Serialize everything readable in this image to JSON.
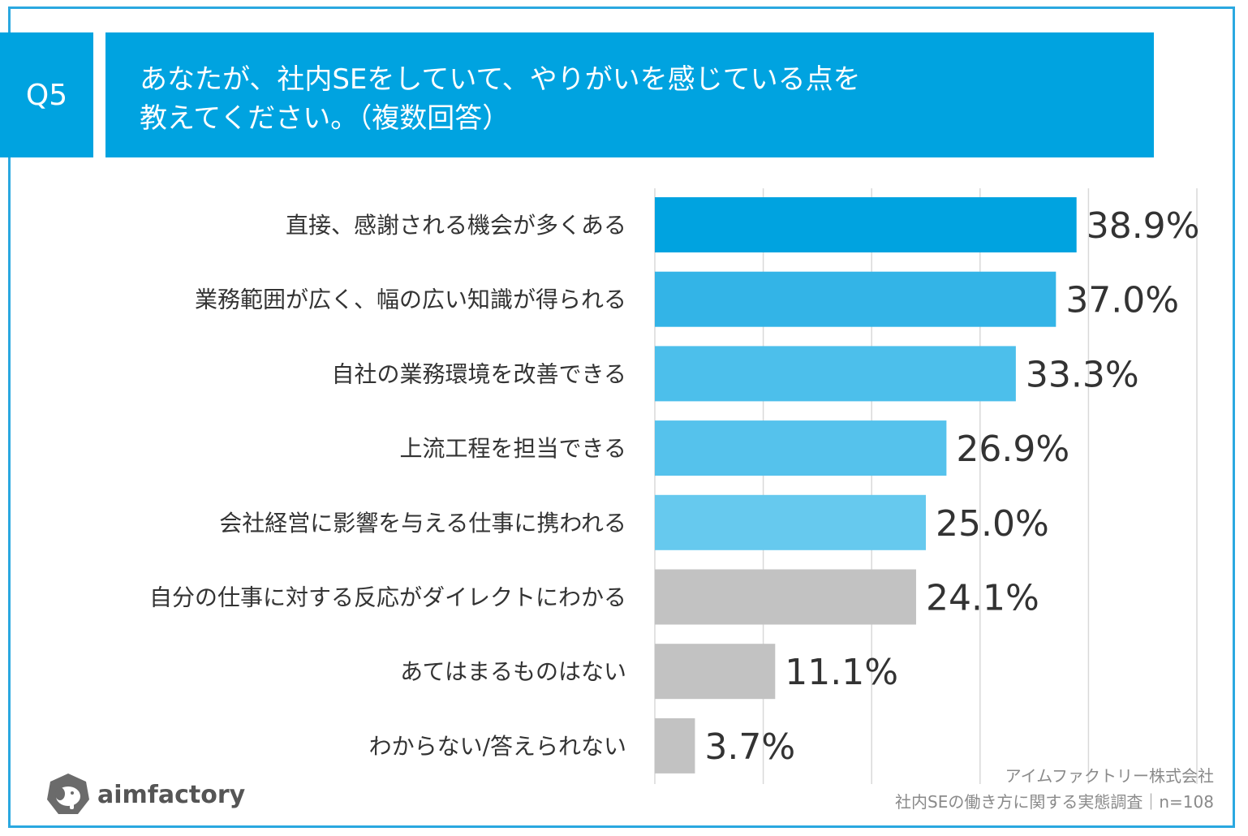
{
  "header": {
    "badge": "Q5",
    "title_line1": "あなたが、社内SEをしていて、やりがいを感じている点を",
    "title_line2": "教えてください。（複数回答）"
  },
  "footer": {
    "company": "アイムファクトリー株式会社",
    "survey": "社内SEの働き方に関する実態調査｜n=108",
    "logo_text": "aimfactory"
  },
  "colors": {
    "header": "#00a3e0",
    "border": "#2aa8e0",
    "gray_bar": "#c2c2c2"
  },
  "chart_data": {
    "type": "bar",
    "orientation": "horizontal",
    "xlim": [
      0,
      50
    ],
    "grid": true,
    "categories": [
      "直接、感謝される機会が多くある",
      "業務範囲が広く、幅の広い知識が得られる",
      "自社の業務環境を改善できる",
      "上流工程を担当できる",
      "会社経営に影響を与える仕事に携われる",
      "自分の仕事に対する反応がダイレクトにわかる",
      "あてはまるものはない",
      "わからない/答えられない"
    ],
    "values": [
      38.9,
      37.0,
      33.3,
      26.9,
      25.0,
      24.1,
      11.1,
      3.7
    ],
    "value_labels": [
      "38.9%",
      "37.0%",
      "33.3%",
      "26.9%",
      "25.0%",
      "24.1%",
      "11.1%",
      "3.7%"
    ],
    "bar_colors": [
      "#00a3e0",
      "#33b4e7",
      "#4cbfeb",
      "#55c2ec",
      "#66c9ee",
      "#c2c2c2",
      "#c2c2c2",
      "#c2c2c2"
    ]
  }
}
